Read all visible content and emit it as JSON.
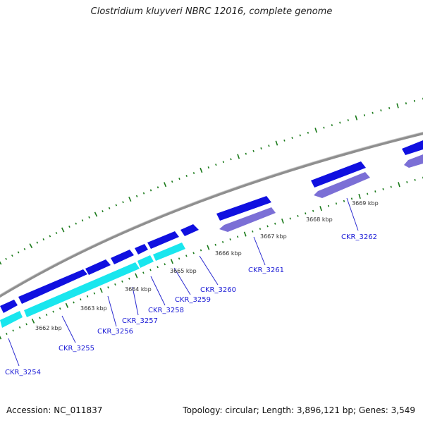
{
  "title": "Clostridium kluyveri NBRC 12016, complete genome",
  "footer": {
    "accession": "Accession: NC_011837",
    "summary": "Topology: circular; Length: 3,896,121 bp; Genes: 3,549"
  },
  "colors": {
    "backbone": "#8a8a8a",
    "forward_gene": "#1010e0",
    "forward_gene_hi": "#5a5aff",
    "reverse_gene": "#7b6fd6",
    "cyan_gene": "#19e6ee",
    "tick": "#1a7a1a",
    "leader": "#2a2ad0"
  },
  "tick_labels": [
    "3662 kbp",
    "3663 kbp",
    "3664 kbp",
    "3665 kbp",
    "3666 kbp",
    "3667 kbp",
    "3668 kbp",
    "3669 kbp"
  ],
  "gene_labels": [
    "CKR_3254",
    "CKR_3255",
    "CKR_3256",
    "CKR_3257",
    "CKR_3258",
    "CKR_3259",
    "CKR_3260",
    "CKR_3261",
    "CKR_3262"
  ]
}
